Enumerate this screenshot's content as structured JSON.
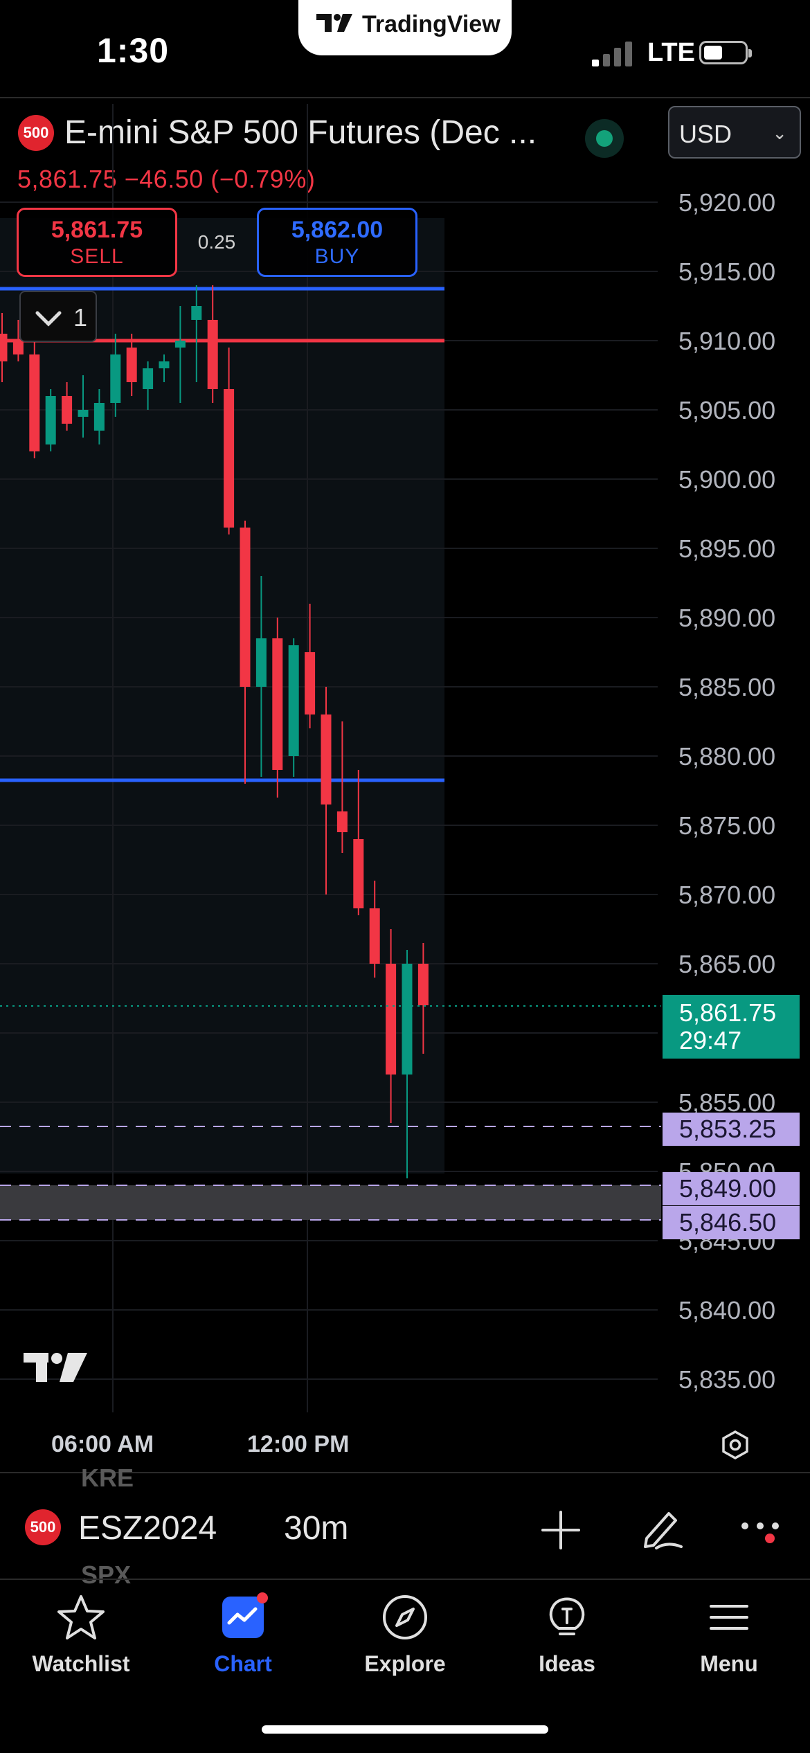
{
  "status_bar": {
    "time": "1:30",
    "network": "LTE",
    "app_banner": "TradingView"
  },
  "header": {
    "badge": "500",
    "title": "E-mini S&P 500 Futures (Dec ...",
    "price_line": "5,861.75 −46.50 (−0.79%)",
    "currency": "USD",
    "currency_chevron": "chevron-down-icon"
  },
  "trade": {
    "sell_price": "5,861.75",
    "sell_label": "SELL",
    "spread": "0.25",
    "buy_price": "5,862.00",
    "buy_label": "BUY",
    "lots": "1"
  },
  "price_axis": {
    "ticks": [
      "5,920.00",
      "5,915.00",
      "5,910.00",
      "5,905.00",
      "5,900.00",
      "5,895.00",
      "5,890.00",
      "5,885.00",
      "5,880.00",
      "5,875.00",
      "5,870.00",
      "5,865.00",
      "5,855.00",
      "5,850.00",
      "5,845.00",
      "5,840.00",
      "5,835.00"
    ],
    "last_price": "5,861.75",
    "countdown": "29:47",
    "levels": [
      "5,853.25",
      "5,849.00",
      "5,846.50"
    ]
  },
  "time_axis": {
    "labels": [
      "06:00 AM",
      "12:00 PM"
    ]
  },
  "chart_data": {
    "type": "candlestick",
    "interval": "30m",
    "ohlc": [
      [
        5910.5,
        5912.0,
        5907.0,
        5908.5
      ],
      [
        5910.0,
        5911.5,
        5908.5,
        5909.0
      ],
      [
        5909.0,
        5911.0,
        5901.5,
        5902.0
      ],
      [
        5902.5,
        5906.5,
        5902.0,
        5906.0
      ],
      [
        5906.0,
        5907.0,
        5903.5,
        5904.0
      ],
      [
        5904.5,
        5907.5,
        5903.0,
        5905.0
      ],
      [
        5903.5,
        5906.5,
        5902.5,
        5905.5
      ],
      [
        5905.5,
        5910.5,
        5904.5,
        5909.0
      ],
      [
        5909.5,
        5910.5,
        5906.0,
        5907.0
      ],
      [
        5906.5,
        5908.5,
        5905.0,
        5908.0
      ],
      [
        5908.0,
        5909.0,
        5907.0,
        5908.5
      ],
      [
        5909.5,
        5912.5,
        5905.5,
        5910.0
      ],
      [
        5911.5,
        5914.0,
        5907.0,
        5912.5
      ],
      [
        5911.5,
        5914.0,
        5905.5,
        5906.5
      ],
      [
        5906.5,
        5909.5,
        5896.0,
        5896.5
      ],
      [
        5896.5,
        5897.0,
        5878.0,
        5885.0
      ],
      [
        5885.0,
        5893.0,
        5878.5,
        5888.5
      ],
      [
        5888.5,
        5890.0,
        5877.0,
        5879.0
      ],
      [
        5880.0,
        5888.5,
        5878.5,
        5888.0
      ],
      [
        5887.5,
        5891.0,
        5882.0,
        5883.0
      ],
      [
        5883.0,
        5885.0,
        5870.0,
        5876.5
      ],
      [
        5876.0,
        5882.5,
        5873.0,
        5874.5
      ],
      [
        5874.0,
        5879.0,
        5868.5,
        5869.0
      ],
      [
        5869.0,
        5871.0,
        5864.0,
        5865.0
      ],
      [
        5865.0,
        5867.5,
        5853.5,
        5857.0
      ],
      [
        5857.0,
        5866.0,
        5849.5,
        5865.0
      ],
      [
        5865.0,
        5866.5,
        5858.5,
        5862.0
      ]
    ],
    "horizontal_lines": [
      {
        "price": 5913.75,
        "color": "#2962ff"
      },
      {
        "price": 5910.0,
        "color": "#f23645"
      },
      {
        "price": 5878.25,
        "color": "#2962ff"
      }
    ],
    "up_color": "#089981",
    "down_color": "#f23645"
  },
  "toolbar": {
    "badge": "500",
    "symbol": "ESZ2024",
    "interval": "30m",
    "ghost_above": "KRE",
    "ghost_below": "SPX"
  },
  "nav": [
    {
      "label": "Watchlist",
      "icon": "star-icon"
    },
    {
      "label": "Chart",
      "icon": "chart-icon",
      "active": true
    },
    {
      "label": "Explore",
      "icon": "compass-icon"
    },
    {
      "label": "Ideas",
      "icon": "lightbulb-icon"
    },
    {
      "label": "Menu",
      "icon": "menu-icon"
    }
  ]
}
